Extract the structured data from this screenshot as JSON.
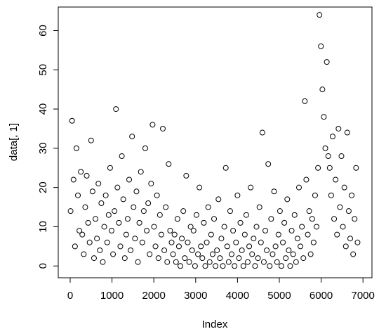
{
  "chart_data": {
    "type": "scatter",
    "x_label": "Index",
    "y_label": "data[, 1]",
    "color": "#000000",
    "xlim": [
      -285,
      7215
    ],
    "ylim": [
      -3,
      66
    ],
    "xticks": [
      0,
      1000,
      2000,
      3000,
      4000,
      5000,
      6000,
      7000
    ],
    "yticks": [
      0,
      10,
      20,
      30,
      40,
      50,
      60
    ],
    "x": [
      10,
      45,
      80,
      115,
      150,
      185,
      220,
      255,
      290,
      325,
      360,
      395,
      430,
      465,
      500,
      535,
      570,
      605,
      640,
      675,
      710,
      745,
      780,
      815,
      850,
      885,
      920,
      955,
      990,
      1025,
      1060,
      1095,
      1130,
      1165,
      1200,
      1235,
      1270,
      1305,
      1340,
      1375,
      1410,
      1445,
      1480,
      1515,
      1550,
      1585,
      1620,
      1655,
      1690,
      1725,
      1760,
      1795,
      1830,
      1865,
      1900,
      1935,
      1970,
      2005,
      2040,
      2075,
      2110,
      2145,
      2180,
      2215,
      2250,
      2285,
      2320,
      2355,
      2390,
      2425,
      2460,
      2495,
      2530,
      2565,
      2600,
      2635,
      2670,
      2705,
      2740,
      2775,
      2810,
      2845,
      2880,
      2915,
      2950,
      2985,
      3020,
      3055,
      3090,
      3125,
      3160,
      3195,
      3230,
      3265,
      3300,
      3335,
      3370,
      3405,
      3440,
      3475,
      3510,
      3545,
      3580,
      3615,
      3650,
      3685,
      3720,
      3755,
      3790,
      3825,
      3860,
      3895,
      3930,
      3965,
      4000,
      4035,
      4070,
      4105,
      4140,
      4175,
      4210,
      4245,
      4280,
      4315,
      4350,
      4385,
      4420,
      4455,
      4490,
      4525,
      4560,
      4595,
      4630,
      4665,
      4700,
      4735,
      4770,
      4805,
      4840,
      4875,
      4910,
      4945,
      4980,
      5015,
      5050,
      5085,
      5120,
      5155,
      5190,
      5225,
      5260,
      5295,
      5330,
      5365,
      5400,
      5435,
      5470,
      5505,
      5540,
      5575,
      5610,
      5645,
      5680,
      5715,
      5750,
      5785,
      5820,
      5855,
      5890,
      5925,
      5960,
      5995,
      6030,
      6065,
      6100,
      6135,
      6170,
      6205,
      6240,
      6275,
      6310,
      6345,
      6380,
      6415,
      6450,
      6485,
      6520,
      6555,
      6590,
      6625,
      6660,
      6695,
      6730,
      6765,
      6800,
      6835,
      6870
    ],
    "values": [
      14,
      37,
      22,
      5,
      30,
      18,
      9,
      24,
      8,
      3,
      15,
      23,
      11,
      6,
      32,
      19,
      2,
      12,
      7,
      21,
      4,
      16,
      1,
      10,
      18,
      6,
      13,
      25,
      9,
      3,
      14,
      40,
      20,
      11,
      5,
      28,
      17,
      2,
      8,
      12,
      22,
      4,
      33,
      15,
      7,
      19,
      1,
      11,
      24,
      6,
      14,
      30,
      9,
      16,
      3,
      21,
      36,
      10,
      5,
      18,
      2,
      13,
      8,
      35,
      4,
      15,
      1,
      26,
      9,
      6,
      3,
      8,
      1,
      12,
      5,
      0,
      7,
      14,
      2,
      23,
      6,
      1,
      10,
      4,
      9,
      0,
      13,
      3,
      20,
      5,
      2,
      11,
      0,
      6,
      15,
      1,
      8,
      3,
      12,
      0,
      4,
      17,
      2,
      7,
      0,
      10,
      25,
      5,
      1,
      14,
      3,
      9,
      0,
      6,
      18,
      2,
      11,
      4,
      0,
      8,
      13,
      1,
      5,
      20,
      3,
      7,
      0,
      10,
      2,
      15,
      6,
      34,
      1,
      9,
      4,
      26,
      0,
      12,
      3,
      19,
      5,
      1,
      8,
      14,
      0,
      6,
      11,
      2,
      17,
      4,
      0,
      9,
      3,
      13,
      1,
      7,
      20,
      5,
      10,
      2,
      42,
      22,
      8,
      14,
      3,
      12,
      6,
      18,
      10,
      25,
      64,
      56,
      45,
      38,
      30,
      52,
      28,
      25,
      18,
      33,
      12,
      22,
      8,
      35,
      15,
      28,
      10,
      20,
      5,
      34,
      14,
      7,
      18,
      3,
      12,
      25,
      6
    ]
  }
}
